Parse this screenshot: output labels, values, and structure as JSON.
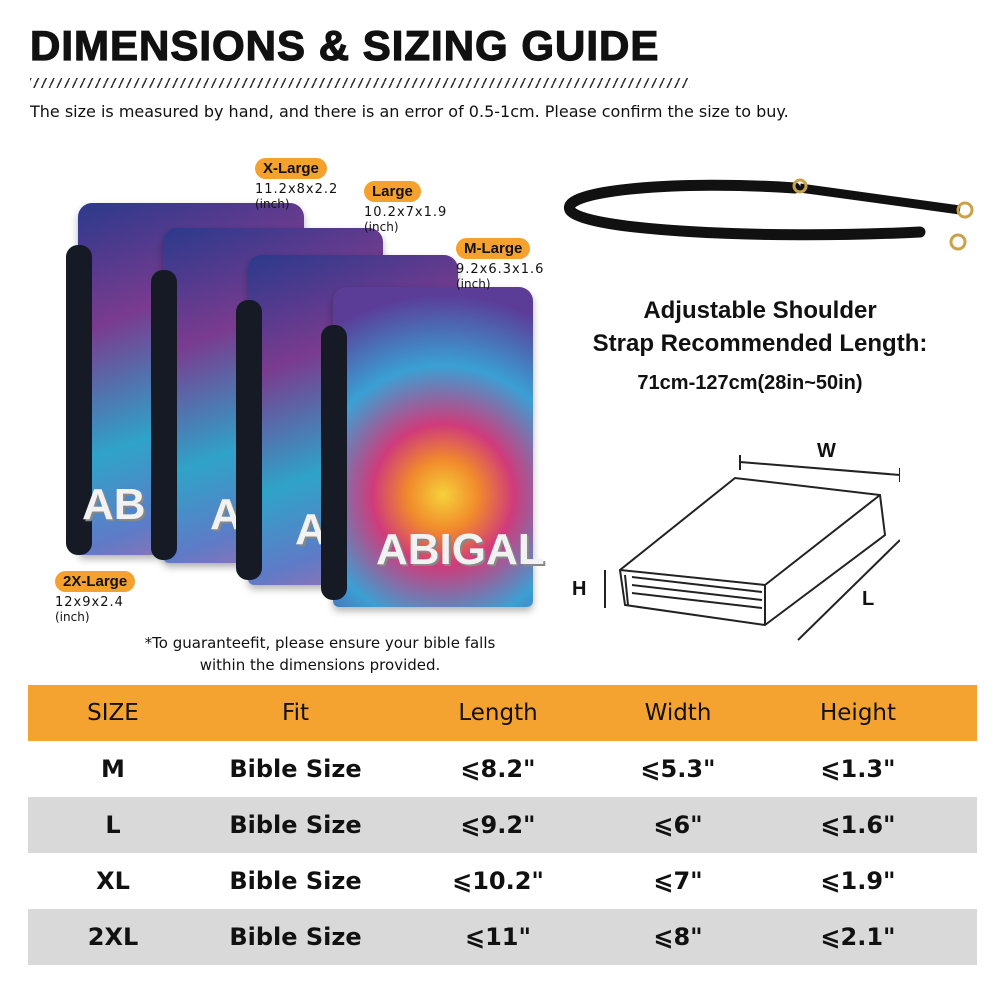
{
  "title": "DIMENSIONS & SIZING GUIDE",
  "subtitle": "The size is measured by hand, and there is an error of 0.5-1cm. Please confirm the size to buy.",
  "sizes": [
    {
      "tag": "X-Large",
      "dims": "11.2x8x2.2",
      "unit": "(inch)"
    },
    {
      "tag": "Large",
      "dims": "10.2x7x1.9",
      "unit": "(inch)"
    },
    {
      "tag": "M-Large",
      "dims": "9.2x6.3x1.6",
      "unit": "(inch)"
    },
    {
      "tag": "2X-Large",
      "dims": "12x9x2.4",
      "unit": "(inch)"
    }
  ],
  "cover_name": "ABIGAL",
  "note": "*To guaranteefit, please ensure your bible falls within the dimensions provided.",
  "strap": {
    "line1": "Adjustable Shoulder",
    "line2": "Strap Recommended Length:",
    "length": "71cm-127cm(28in~50in)"
  },
  "diagram": {
    "w": "W",
    "h": "H",
    "l": "L"
  },
  "accent": "#f4a230",
  "table": {
    "headers": [
      "SIZE",
      "Fit",
      "Length",
      "Width",
      "Height"
    ],
    "rows": [
      [
        "M",
        "Bible Size",
        "⩽8.2\"",
        "⩽5.3\"",
        "⩽1.3\""
      ],
      [
        "L",
        "Bible Size",
        "⩽9.2\"",
        "⩽6\"",
        "⩽1.6\""
      ],
      [
        "XL",
        "Bible Size",
        "⩽10.2\"",
        "⩽7\"",
        "⩽1.9\""
      ],
      [
        "2XL",
        "Bible Size",
        "⩽11\"",
        "⩽8\"",
        "⩽2.1\""
      ]
    ]
  }
}
